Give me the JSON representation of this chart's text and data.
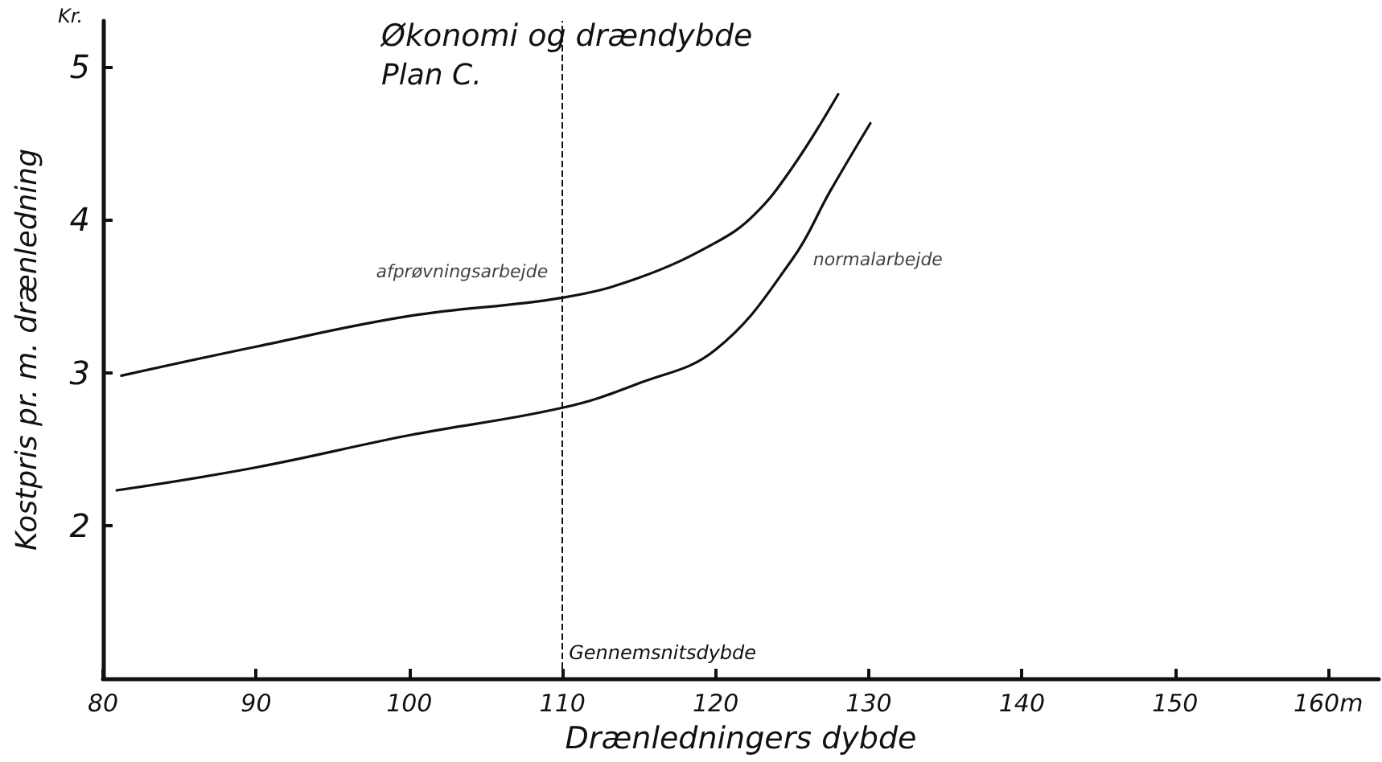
{
  "chart_data": {
    "type": "line",
    "title": "Økonomi og drændybde",
    "subtitle": "Plan C.",
    "xlabel": "Drænledningers dybde",
    "ylabel": "Kostpris pr. m. drænledning",
    "xlim": [
      80,
      163.3
    ],
    "xticks": [
      80,
      90,
      100,
      110,
      120,
      130,
      140,
      150,
      {
        "value": 160,
        "label": "160m"
      }
    ],
    "ylim": [
      1,
      5.3
    ],
    "yticks": [
      2,
      3,
      4,
      5
    ],
    "grid": false,
    "marker": "none",
    "line_style": "solid",
    "series": [
      {
        "color": "#111111",
        "x": [
          81.2,
          90,
          100,
          110,
          115,
          120,
          122.5,
          125,
          128
        ],
        "values": [
          2.98,
          3.17,
          3.37,
          3.49,
          3.62,
          3.85,
          4.03,
          4.34,
          4.82
        ]
      },
      {
        "color": "#111111",
        "x": [
          80.9,
          90,
          100,
          110,
          115,
          120,
          125,
          127.5,
          130.1
        ],
        "values": [
          2.23,
          2.38,
          2.59,
          2.77,
          2.93,
          3.15,
          3.74,
          4.19,
          4.63
        ]
      }
    ],
    "ref_lines": [
      {
        "axis": "x",
        "value": 110,
        "label": "Gennemsnitsdybde",
        "line_style": "dashed",
        "color": "#111111"
      }
    ],
    "annotations": [
      {
        "text": "afprøvningsarbejde",
        "x": 110,
        "y": 3.49
      },
      {
        "text": "normalarbejde",
        "x": 125,
        "y": 3.74
      },
      "Kr."
    ]
  }
}
